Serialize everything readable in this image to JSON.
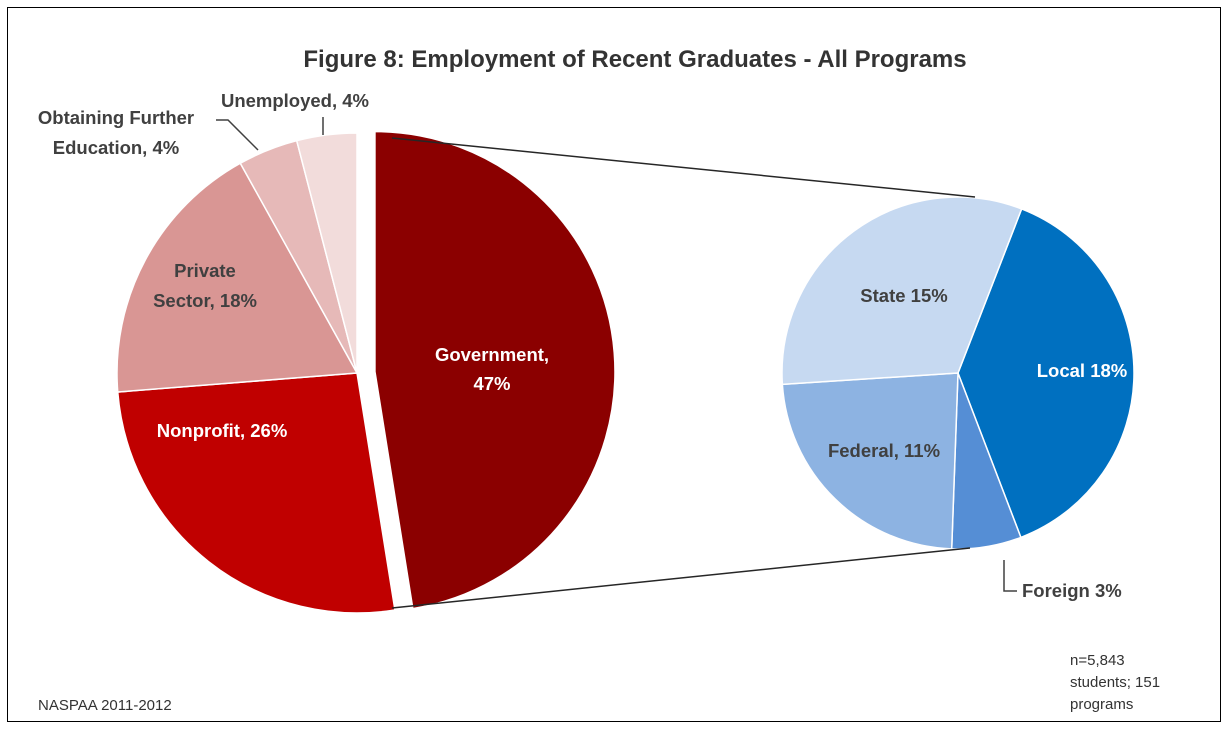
{
  "chart_data": {
    "type": "pie",
    "title": "Figure 8: Employment of Recent Graduates - All Programs",
    "pies": [
      {
        "name": "",
        "slices": [
          {
            "label": "Government, 47%",
            "value": 47,
            "color": "#8b0000",
            "exploded": true
          },
          {
            "label": "Nonprofit, 26%",
            "value": 26,
            "color": "#c00000"
          },
          {
            "label": "Private Sector, 18%",
            "value": 18,
            "color": "#d99694"
          },
          {
            "label": "Obtaining Further Education, 4%",
            "value": 4,
            "color": "#e6b9b8"
          },
          {
            "label": "Unemployed, 4%",
            "value": 4,
            "color": "#f2dcdb"
          }
        ]
      },
      {
        "name": "",
        "breakdown_of": "Government",
        "slices": [
          {
            "label": "Local 18%",
            "value": 18,
            "color": "#0070c0"
          },
          {
            "label": "Foreign 3%",
            "value": 3,
            "color": "#558ed5"
          },
          {
            "label": "Federal, 11%",
            "value": 11,
            "color": "#8db3e2"
          },
          {
            "label": "State 15%",
            "value": 15,
            "color": "#c6d9f1"
          }
        ]
      }
    ]
  },
  "notes": {
    "source": "NASPAA 2011-2012",
    "sample_line1": "n=5,843",
    "sample_line2": "students; 151",
    "sample_line3": "programs"
  }
}
